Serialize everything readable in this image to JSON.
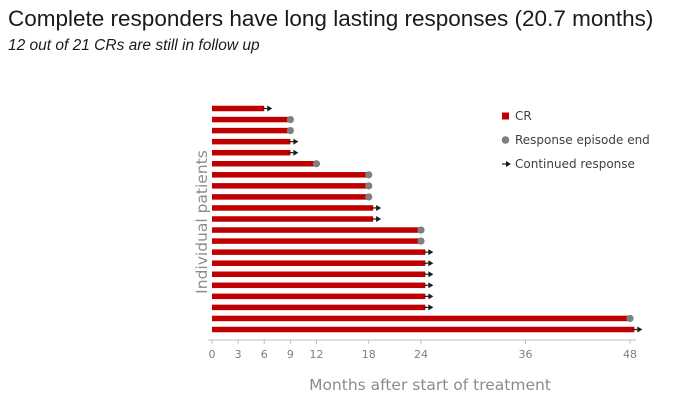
{
  "title": "Complete responders have long lasting responses (20.7 months)",
  "subtitle": "12 out of 21 CRs are still in follow up",
  "colors": {
    "bar": "#c00000",
    "dot": "#7f7f7f",
    "arrow": "#1a1a1a",
    "axis": "#bfbfbf"
  },
  "chart_data": {
    "type": "bar",
    "orientation": "horizontal",
    "xlabel": "Months after start of treatment",
    "ylabel": "Individual patients",
    "xticks": [
      0,
      3,
      6,
      9,
      12,
      18,
      24,
      36,
      48
    ],
    "xlim": [
      0,
      48
    ],
    "legend": {
      "position": "right",
      "entries": [
        {
          "label": "CR",
          "marker": "bar"
        },
        {
          "label": "Response episode end",
          "marker": "dot"
        },
        {
          "label": "Continued response",
          "marker": "arrow"
        }
      ]
    },
    "patients": [
      {
        "months": 6,
        "end": "arrow"
      },
      {
        "months": 9,
        "end": "dot"
      },
      {
        "months": 9,
        "end": "dot"
      },
      {
        "months": 9,
        "end": "arrow"
      },
      {
        "months": 9,
        "end": "arrow"
      },
      {
        "months": 12,
        "end": "dot"
      },
      {
        "months": 18,
        "end": "dot"
      },
      {
        "months": 18,
        "end": "dot"
      },
      {
        "months": 18,
        "end": "dot"
      },
      {
        "months": 18.5,
        "end": "arrow"
      },
      {
        "months": 18.5,
        "end": "arrow"
      },
      {
        "months": 24,
        "end": "dot"
      },
      {
        "months": 24,
        "end": "dot"
      },
      {
        "months": 24.5,
        "end": "arrow"
      },
      {
        "months": 24.5,
        "end": "arrow"
      },
      {
        "months": 24.5,
        "end": "arrow"
      },
      {
        "months": 24.5,
        "end": "arrow"
      },
      {
        "months": 24.5,
        "end": "arrow"
      },
      {
        "months": 24.5,
        "end": "arrow"
      },
      {
        "months": 48,
        "end": "dot"
      },
      {
        "months": 48.5,
        "end": "arrow"
      }
    ]
  }
}
